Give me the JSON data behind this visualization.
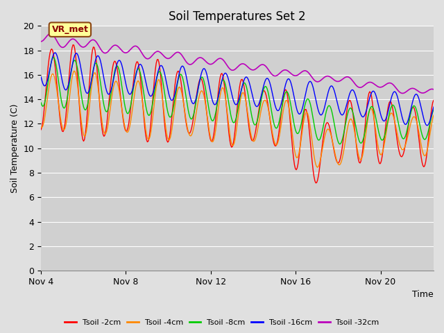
{
  "title": "Soil Temperatures Set 2",
  "xlabel": "Time",
  "ylabel": "Soil Temperature (C)",
  "ylim": [
    0,
    20
  ],
  "yticks": [
    0,
    2,
    4,
    6,
    8,
    10,
    12,
    14,
    16,
    18,
    20
  ],
  "x_tick_labels": [
    "Nov 4",
    "Nov 8",
    "Nov 12",
    "Nov 16",
    "Nov 20"
  ],
  "x_tick_positions": [
    0,
    4,
    8,
    12,
    16
  ],
  "n_days": 18.5,
  "colors": {
    "tsoil_2cm": "#ff0000",
    "tsoil_4cm": "#ff8800",
    "tsoil_8cm": "#00cc00",
    "tsoil_16cm": "#0000ff",
    "tsoil_32cm": "#bb00bb"
  },
  "legend_labels": [
    "Tsoil -2cm",
    "Tsoil -4cm",
    "Tsoil -8cm",
    "Tsoil -16cm",
    "Tsoil -32cm"
  ],
  "annotation_text": "VR_met",
  "annotation_box_color": "#ffff99",
  "annotation_border_color": "#8B4513",
  "fig_bg_color": "#e0e0e0",
  "plot_bg_color": "#d0d0d0",
  "title_fontsize": 12,
  "axis_label_fontsize": 9,
  "tick_fontsize": 9,
  "legend_fontsize": 8
}
